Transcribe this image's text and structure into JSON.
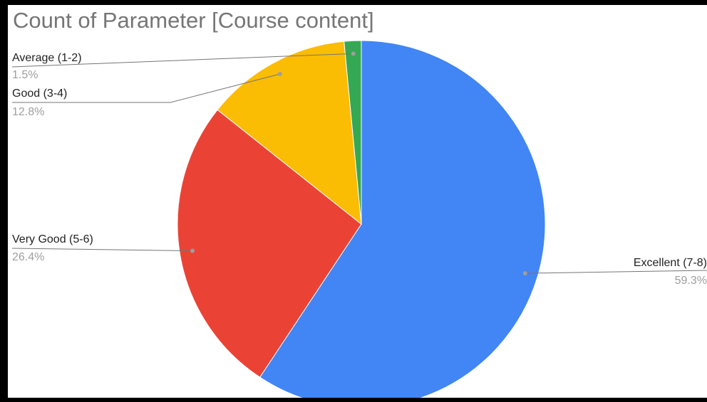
{
  "chart_data": {
    "type": "pie",
    "title": "Count of Parameter [Course content]",
    "slices": [
      {
        "label": "Excellent (7-8)",
        "percent_label": "59.3%",
        "value": 59.3,
        "color": "#4285F4"
      },
      {
        "label": "Very Good (5-6)",
        "percent_label": "26.4%",
        "value": 26.4,
        "color": "#EA4335"
      },
      {
        "label": "Good (3-4)",
        "percent_label": "12.8%",
        "value": 12.8,
        "color": "#FBBC04"
      },
      {
        "label": "Average (1-2)",
        "percent_label": "1.5%",
        "value": 1.5,
        "color": "#34A853"
      }
    ],
    "direction": "clockwise from top"
  }
}
